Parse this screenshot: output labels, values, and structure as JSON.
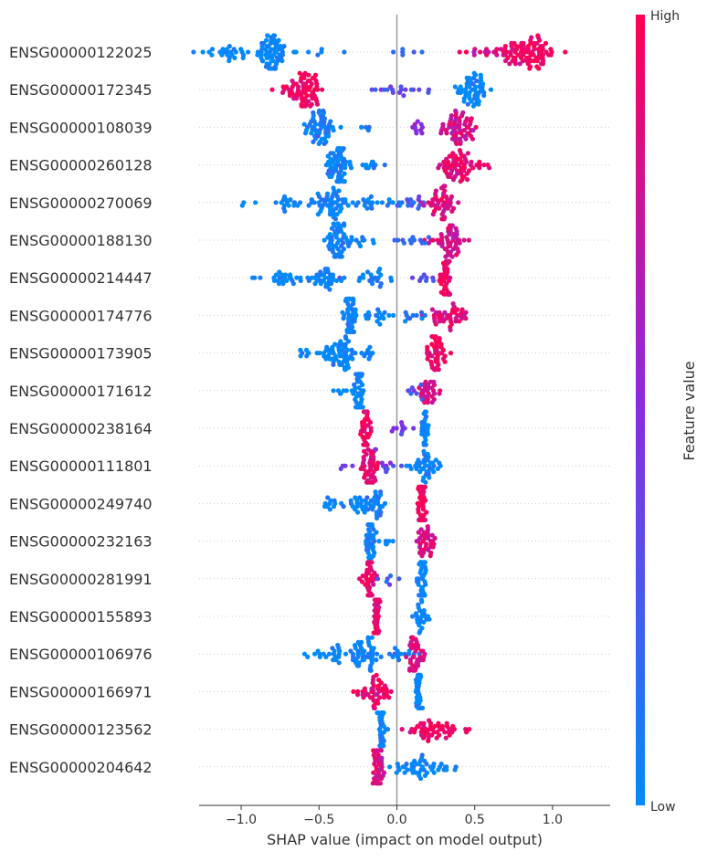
{
  "chart_data": {
    "type": "scatter",
    "subtype": "shap-beeswarm-summary",
    "xlabel": "SHAP value (impact on model output)",
    "x_ticks": [
      -1.0,
      -0.5,
      0.0,
      0.5,
      1.0
    ],
    "x_tick_labels": [
      "−1.0",
      "−0.5",
      "0.0",
      "0.5",
      "1.0"
    ],
    "xlim": [
      -1.27,
      1.37
    ],
    "colorbar": {
      "label": "Feature value",
      "high_label": "High",
      "low_label": "Low",
      "high_color": "#ff0052",
      "mid_color": "#8a2be2",
      "low_color": "#008bfb"
    },
    "features": [
      {
        "name": "ENSG00000122025",
        "clusters": [
          [
            -0.8,
            0.05,
            0.0,
            70
          ],
          [
            -1.1,
            0.08,
            0.0,
            25
          ],
          [
            0.85,
            0.1,
            0.95,
            80
          ],
          [
            0.65,
            0.1,
            0.85,
            20
          ],
          [
            -0.5,
            0.1,
            0.0,
            6
          ],
          [
            0.1,
            0.08,
            0.2,
            6
          ]
        ]
      },
      {
        "name": "ENSG00000172345",
        "clusters": [
          [
            -0.6,
            0.05,
            0.95,
            65
          ],
          [
            0.5,
            0.05,
            0.0,
            55
          ],
          [
            0.05,
            0.1,
            0.35,
            18
          ],
          [
            -0.72,
            0.05,
            0.9,
            8
          ]
        ]
      },
      {
        "name": "ENSG00000108039",
        "clusters": [
          [
            -0.5,
            0.05,
            0.05,
            55
          ],
          [
            0.4,
            0.05,
            0.8,
            60
          ],
          [
            0.15,
            0.05,
            0.5,
            10
          ],
          [
            -0.2,
            0.03,
            0.1,
            4
          ]
        ]
      },
      {
        "name": "ENSG00000260128",
        "clusters": [
          [
            -0.37,
            0.04,
            0.02,
            60
          ],
          [
            0.38,
            0.05,
            0.9,
            60
          ],
          [
            -0.15,
            0.05,
            0.05,
            10
          ],
          [
            0.55,
            0.03,
            0.9,
            6
          ]
        ]
      },
      {
        "name": "ENSG00000270069",
        "clusters": [
          [
            -0.4,
            0.04,
            0.02,
            40
          ],
          [
            -0.7,
            0.15,
            0.0,
            30
          ],
          [
            -0.1,
            0.15,
            0.05,
            25
          ],
          [
            0.28,
            0.06,
            0.85,
            45
          ],
          [
            0.12,
            0.05,
            0.3,
            10
          ]
        ]
      },
      {
        "name": "ENSG00000188130",
        "clusters": [
          [
            -0.38,
            0.04,
            0.02,
            55
          ],
          [
            0.33,
            0.06,
            0.8,
            50
          ],
          [
            -0.2,
            0.04,
            0.05,
            8
          ],
          [
            0.1,
            0.06,
            0.2,
            12
          ]
        ]
      },
      {
        "name": "ENSG00000214447",
        "clusters": [
          [
            -0.45,
            0.05,
            0.02,
            35
          ],
          [
            -0.75,
            0.1,
            0.0,
            25
          ],
          [
            -0.15,
            0.05,
            0.05,
            20
          ],
          [
            0.32,
            0.015,
            0.95,
            40
          ],
          [
            0.18,
            0.04,
            0.3,
            8
          ]
        ]
      },
      {
        "name": "ENSG00000174776",
        "clusters": [
          [
            -0.3,
            0.03,
            0.02,
            45
          ],
          [
            -0.12,
            0.06,
            0.02,
            18
          ],
          [
            0.35,
            0.07,
            0.85,
            40
          ],
          [
            0.1,
            0.05,
            0.1,
            10
          ]
        ]
      },
      {
        "name": "ENSG00000173905",
        "clusters": [
          [
            -0.35,
            0.04,
            0.02,
            45
          ],
          [
            -0.55,
            0.1,
            0.0,
            15
          ],
          [
            -0.2,
            0.05,
            0.05,
            12
          ],
          [
            0.25,
            0.03,
            0.95,
            45
          ]
        ]
      },
      {
        "name": "ENSG00000171612",
        "clusters": [
          [
            -0.24,
            0.015,
            0.02,
            45
          ],
          [
            -0.32,
            0.05,
            0.0,
            8
          ],
          [
            0.2,
            0.04,
            0.8,
            30
          ],
          [
            0.1,
            0.04,
            0.3,
            8
          ]
        ]
      },
      {
        "name": "ENSG00000238164",
        "clusters": [
          [
            -0.2,
            0.015,
            0.95,
            45
          ],
          [
            0.18,
            0.015,
            0.02,
            25
          ],
          [
            0.0,
            0.06,
            0.4,
            10
          ]
        ]
      },
      {
        "name": "ENSG00000111801",
        "clusters": [
          [
            -0.17,
            0.03,
            0.9,
            45
          ],
          [
            0.18,
            0.04,
            0.02,
            40
          ],
          [
            -0.05,
            0.05,
            0.4,
            10
          ],
          [
            -0.3,
            0.03,
            0.5,
            4
          ]
        ]
      },
      {
        "name": "ENSG00000249740",
        "clusters": [
          [
            -0.22,
            0.05,
            0.02,
            30
          ],
          [
            -0.4,
            0.06,
            0.0,
            12
          ],
          [
            0.16,
            0.015,
            0.95,
            40
          ],
          [
            -0.12,
            0.015,
            0.05,
            15
          ]
        ]
      },
      {
        "name": "ENSG00000232163",
        "clusters": [
          [
            -0.17,
            0.015,
            0.02,
            45
          ],
          [
            0.18,
            0.03,
            0.85,
            35
          ],
          [
            -0.05,
            0.04,
            0.05,
            6
          ]
        ]
      },
      {
        "name": "ENSG00000281991",
        "clusters": [
          [
            -0.18,
            0.02,
            0.92,
            40
          ],
          [
            0.16,
            0.015,
            0.02,
            40
          ],
          [
            -0.05,
            0.04,
            0.2,
            6
          ]
        ]
      },
      {
        "name": "ENSG00000155893",
        "clusters": [
          [
            -0.13,
            0.01,
            0.92,
            40
          ],
          [
            0.16,
            0.03,
            0.02,
            25
          ]
        ]
      },
      {
        "name": "ENSG00000106976",
        "clusters": [
          [
            -0.2,
            0.04,
            0.02,
            45
          ],
          [
            -0.42,
            0.09,
            0.0,
            25
          ],
          [
            0.03,
            0.04,
            0.05,
            15
          ],
          [
            0.13,
            0.03,
            0.85,
            35
          ]
        ]
      },
      {
        "name": "ENSG00000166971",
        "clusters": [
          [
            -0.13,
            0.04,
            0.95,
            40
          ],
          [
            0.14,
            0.01,
            0.02,
            35
          ],
          [
            -0.25,
            0.04,
            0.95,
            6
          ]
        ]
      },
      {
        "name": "ENSG00000123562",
        "clusters": [
          [
            -0.1,
            0.015,
            0.02,
            40
          ],
          [
            0.22,
            0.09,
            0.95,
            45
          ],
          [
            0.45,
            0.05,
            0.95,
            6
          ]
        ]
      },
      {
        "name": "ENSG00000204642",
        "clusters": [
          [
            -0.12,
            0.02,
            0.85,
            40
          ],
          [
            0.14,
            0.08,
            0.02,
            40
          ],
          [
            0.3,
            0.05,
            0.02,
            8
          ]
        ]
      }
    ]
  }
}
